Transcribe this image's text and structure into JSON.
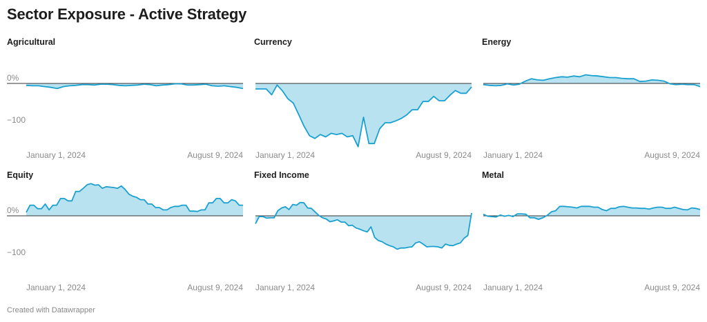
{
  "title": "Sector Exposure - Active Strategy",
  "footer": "Created with Datawrapper",
  "colors": {
    "line": "#1aa0cf",
    "fill": "#b9e2f0",
    "zero": "#333333"
  },
  "chart_data": {
    "type": "area",
    "layout": "small-multiples 3x2",
    "x_start_label": "January 1, 2024",
    "x_end_label": "August 9, 2024",
    "y_ticks": [
      {
        "value": 0,
        "label": "0%"
      },
      {
        "value": -100,
        "label": "−100"
      }
    ],
    "panels": [
      {
        "name": "Agricultural",
        "values": [
          -5,
          -6,
          -6,
          -8,
          -10,
          -13,
          -8,
          -6,
          -5,
          -3,
          -3,
          -4,
          -2,
          -2,
          -3,
          -5,
          -6,
          -5,
          -4,
          -2,
          -3,
          -6,
          -4,
          -3,
          -1,
          -1,
          -4,
          -4,
          -3,
          -2,
          -6,
          -7,
          -6,
          -8,
          -10,
          -13
        ]
      },
      {
        "name": "Currency",
        "values": [
          -14,
          -14,
          -14,
          -29,
          -4,
          -19,
          -39,
          -50,
          -79,
          -109,
          -133,
          -140,
          -130,
          -136,
          -127,
          -130,
          -127,
          -136,
          -133,
          -161,
          -86,
          -153,
          -153,
          -115,
          -100,
          -100,
          -95,
          -89,
          -80,
          -67,
          -67,
          -46,
          -46,
          -33,
          -44,
          -44,
          -30,
          -18,
          -25,
          -25,
          -9
        ]
      },
      {
        "name": "Energy",
        "values": [
          -3,
          -5,
          -6,
          -5,
          -1,
          -4,
          -2,
          6,
          12,
          9,
          8,
          12,
          15,
          17,
          16,
          19,
          17,
          22,
          20,
          19,
          17,
          15,
          15,
          13,
          12,
          12,
          5,
          6,
          9,
          8,
          6,
          -1,
          -3,
          -2,
          -3,
          -3,
          -8
        ]
      },
      {
        "name": "Equity",
        "values": [
          9,
          27,
          27,
          18,
          18,
          30,
          15,
          27,
          27,
          44,
          44,
          38,
          38,
          62,
          62,
          70,
          79,
          82,
          78,
          79,
          70,
          74,
          73,
          72,
          70,
          76,
          67,
          55,
          50,
          47,
          41,
          41,
          30,
          30,
          21,
          21,
          15,
          15,
          21,
          24,
          24,
          27,
          27,
          12,
          12,
          11,
          15,
          15,
          33,
          33,
          44,
          44,
          33,
          33,
          41,
          38,
          27,
          27
        ]
      },
      {
        "name": "Fixed Income",
        "values": [
          -20,
          -2,
          -2,
          -6,
          -5,
          -5,
          13,
          20,
          23,
          16,
          29,
          27,
          34,
          33,
          20,
          19,
          10,
          1,
          -5,
          -8,
          -15,
          -13,
          -10,
          -16,
          -16,
          -25,
          -24,
          -31,
          -34,
          -38,
          -41,
          -28,
          -55,
          -63,
          -66,
          -72,
          -76,
          -79,
          -85,
          -82,
          -82,
          -80,
          -79,
          -69,
          -66,
          -72,
          -79,
          -78,
          -78,
          -79,
          -82,
          -72,
          -75,
          -76,
          -72,
          -69,
          -57,
          -50,
          7
        ]
      },
      {
        "name": "Metal",
        "values": [
          4,
          -1,
          -2,
          -3,
          2,
          -1,
          1,
          -2,
          5,
          5,
          4,
          -5,
          -5,
          -9,
          -5,
          1,
          10,
          13,
          24,
          24,
          23,
          22,
          20,
          24,
          24,
          24,
          22,
          22,
          16,
          13,
          19,
          19,
          23,
          24,
          22,
          20,
          20,
          19,
          19,
          17,
          20,
          22,
          22,
          19,
          19,
          22,
          19,
          16,
          15,
          20,
          19,
          16
        ]
      }
    ]
  }
}
